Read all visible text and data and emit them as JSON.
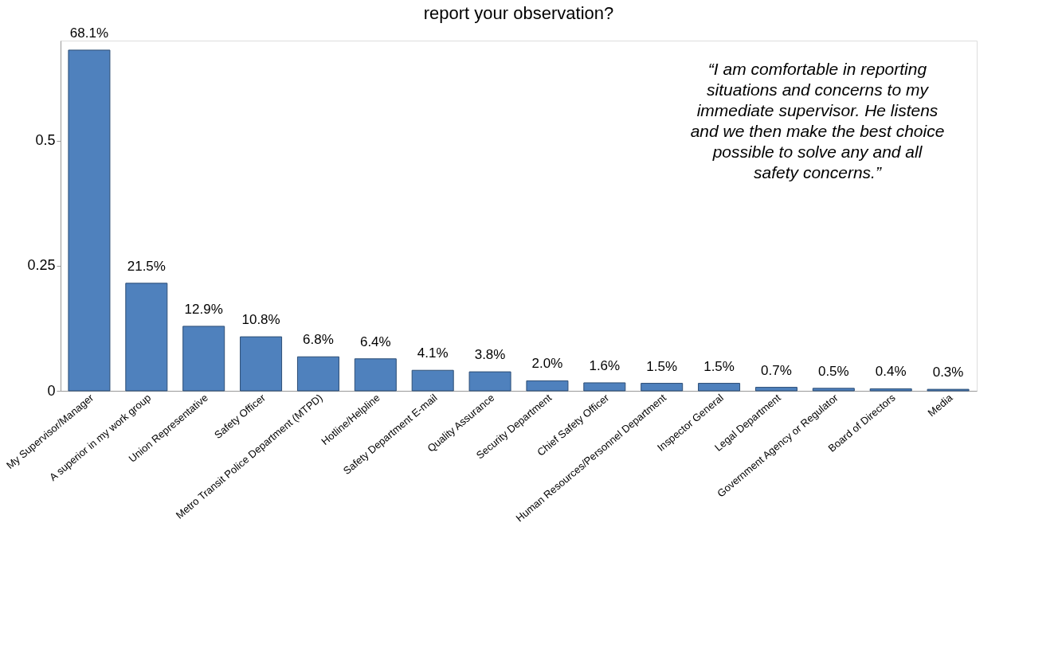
{
  "chart_data": {
    "type": "bar",
    "title": "report your observation?",
    "categories": [
      "My Supervisor/Manager",
      "A superior in my work group",
      "Union Representative",
      "Safety Officer",
      "Metro Transit Police Department (MTPD)",
      "Hotline/Helpline",
      "Safety Department E-mail",
      "Quality Assurance",
      "Security Department",
      "Chief Safety Officer",
      "Human Resources/Personnel Department",
      "Inspector General",
      "Legal Department",
      "Government Agency or Regulator",
      "Board of Directors",
      "Media"
    ],
    "values": [
      0.681,
      0.215,
      0.129,
      0.108,
      0.068,
      0.064,
      0.041,
      0.038,
      0.02,
      0.016,
      0.015,
      0.015,
      0.007,
      0.005,
      0.004,
      0.003
    ],
    "value_labels": [
      "68.1%",
      "21.5%",
      "12.9%",
      "10.8%",
      "6.8%",
      "6.4%",
      "4.1%",
      "3.8%",
      "2.0%",
      "1.6%",
      "1.5%",
      "1.5%",
      "0.7%",
      "0.5%",
      "0.4%",
      "0.3%"
    ],
    "color": "#4f81bd",
    "ylim": [
      0,
      0.7
    ],
    "yticks": [
      0,
      0.25,
      0.5
    ],
    "grid": false,
    "annotations": [
      "“I am comfortable in reporting situations and concerns to my immediate supervisor. He listens and we then make the best choice possible to solve any and all safety concerns.”"
    ]
  }
}
